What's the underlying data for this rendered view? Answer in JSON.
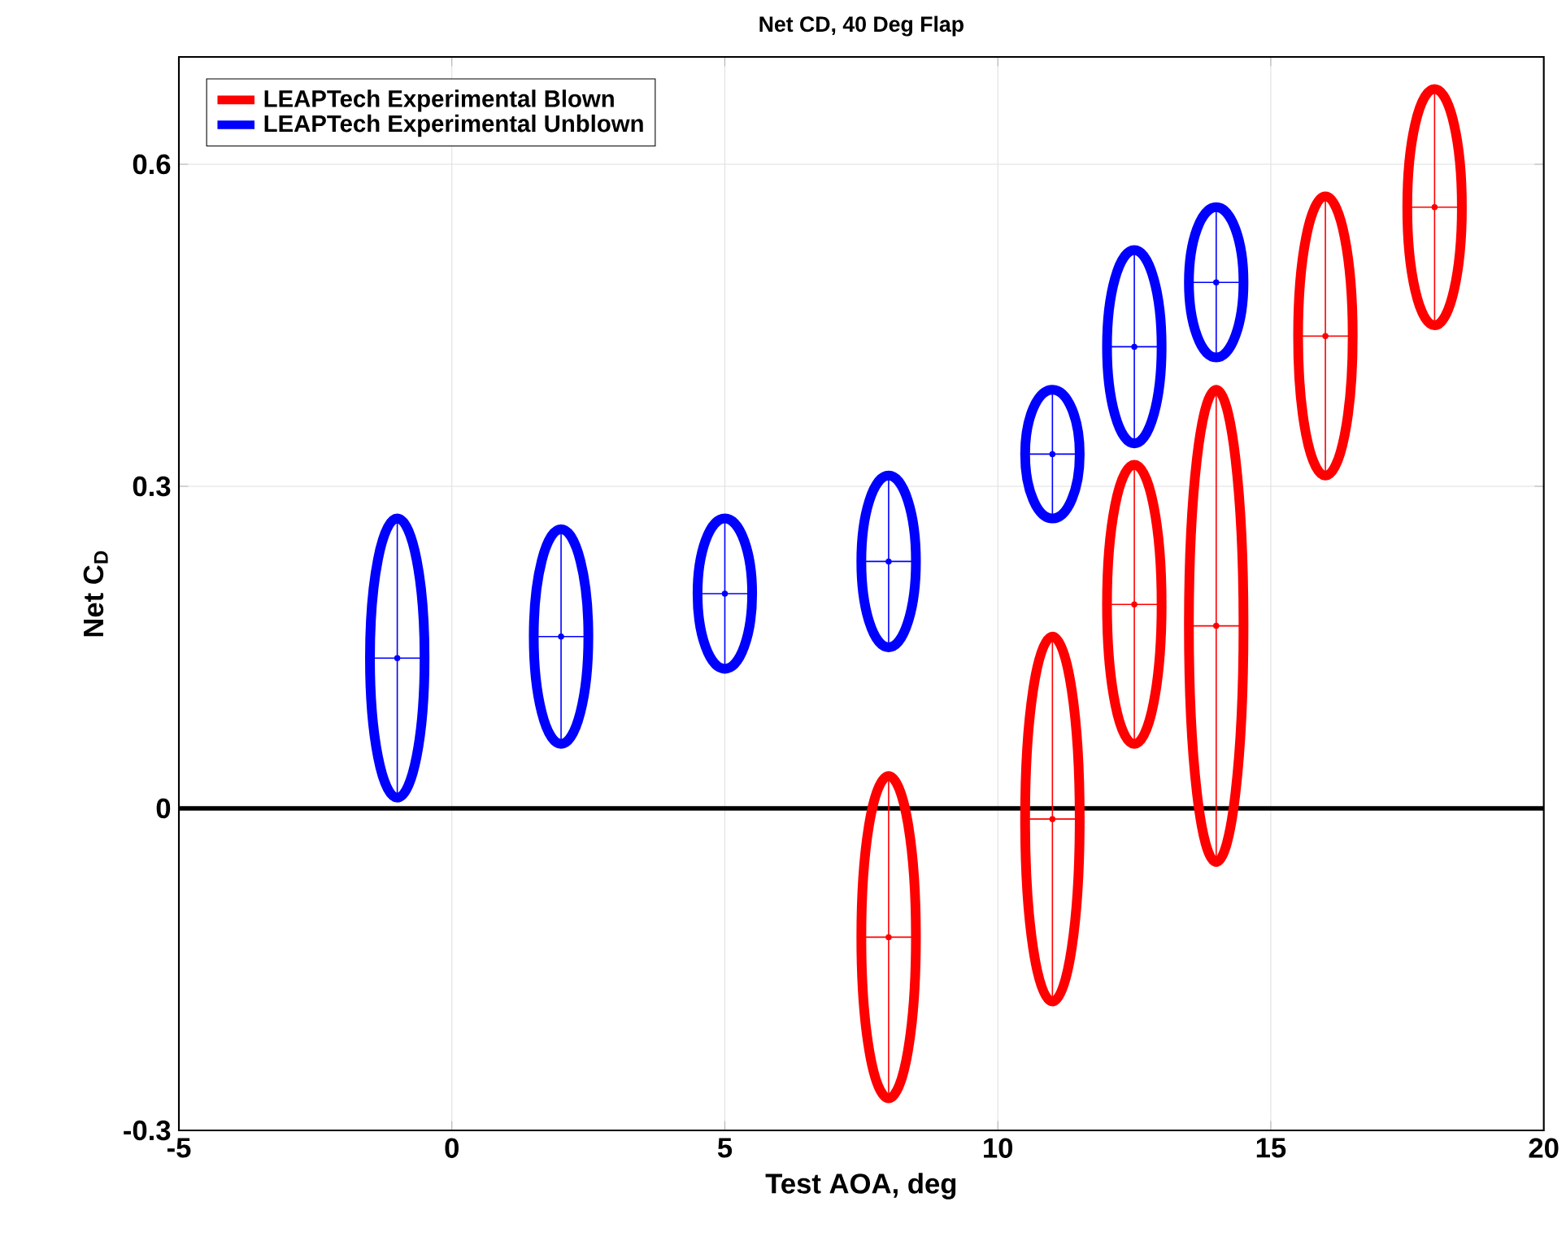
{
  "chart_data": {
    "type": "scatter",
    "title": "Net CD, 40 Deg Flap",
    "xlabel": "Test AOA, deg",
    "ylabel": "Net C$_{D}$",
    "xlim": [
      -5,
      20
    ],
    "ylim": [
      -0.3,
      0.7
    ],
    "xticks": [
      -5,
      0,
      5,
      10,
      15,
      20
    ],
    "yticks": [
      -0.3,
      0,
      0.3,
      0.6
    ],
    "grid": true,
    "legend": "top left",
    "marker": "none",
    "ref_lines": [
      {
        "axis": "y",
        "value": 0,
        "color": "#000000"
      }
    ],
    "series": [
      {
        "name": "LEAPTech Experimental Blown",
        "color": "#ff0000",
        "x": [
          8,
          11,
          12.5,
          14,
          16,
          18
        ],
        "values": [
          -0.12,
          -0.01,
          0.19,
          0.17,
          0.44,
          0.56
        ],
        "errors": [
          0.15,
          0.17,
          0.13,
          0.22,
          0.13,
          0.11
        ],
        "xerrors": [
          0.5,
          0.5,
          0.5,
          0.5,
          0.5,
          0.5
        ]
      },
      {
        "name": "LEAPTech Experimental Unblown",
        "color": "#0000ff",
        "x": [
          -1,
          2,
          5,
          8,
          11,
          12.5,
          14
        ],
        "values": [
          0.14,
          0.16,
          0.2,
          0.23,
          0.33,
          0.43,
          0.49
        ],
        "errors": [
          0.13,
          0.1,
          0.07,
          0.08,
          0.06,
          0.09,
          0.07
        ],
        "xerrors": [
          0.5,
          0.5,
          0.5,
          0.5,
          0.5,
          0.5,
          0.5
        ]
      }
    ]
  }
}
